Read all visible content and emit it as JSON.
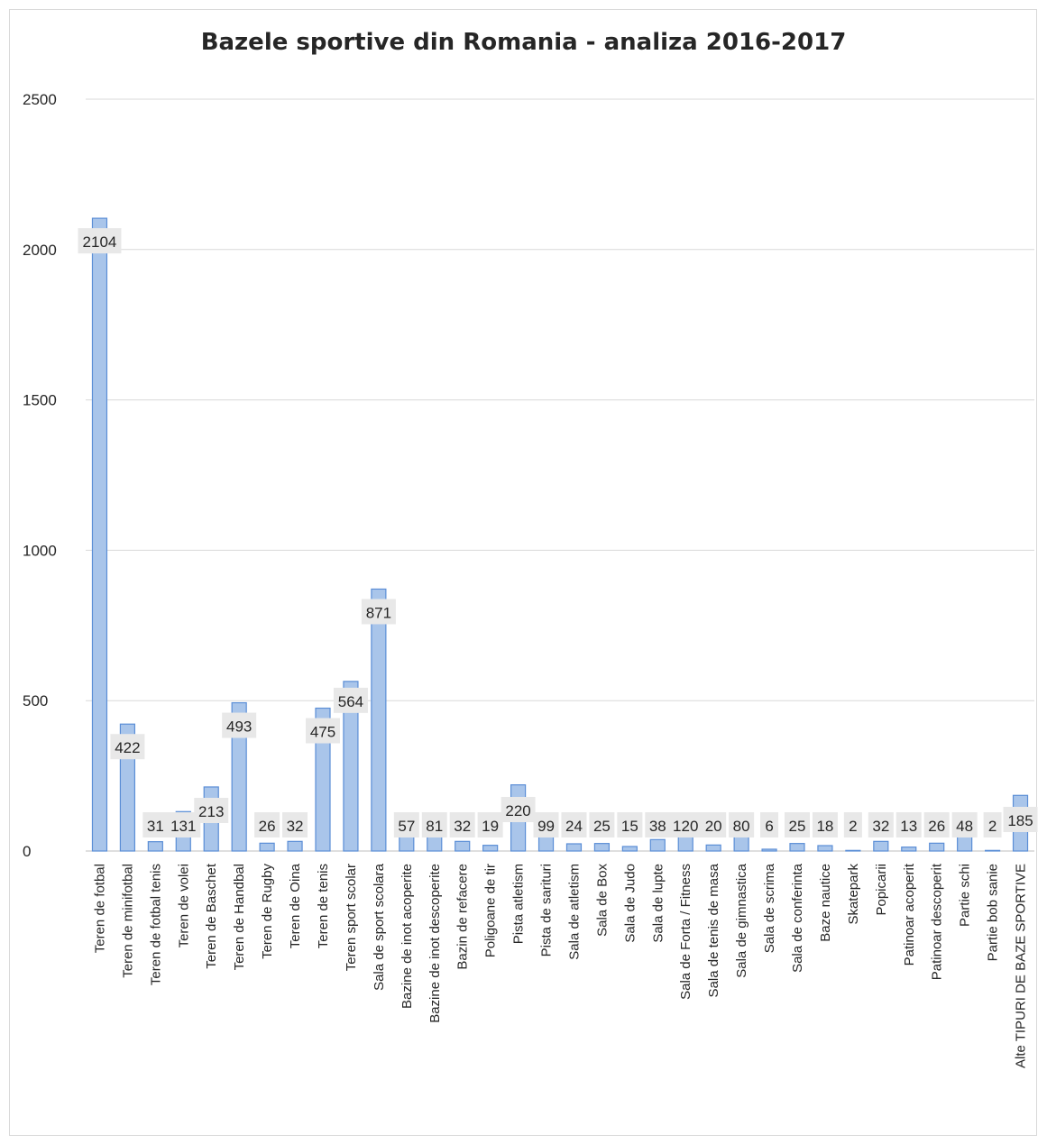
{
  "chart_data": {
    "type": "bar",
    "title": "Bazele sportive din Romania - analiza 2016-2017",
    "xlabel": "",
    "ylabel": "",
    "ylim": [
      0,
      2500
    ],
    "yticks": [
      0,
      500,
      1000,
      1500,
      2000,
      2500
    ],
    "grid": true,
    "colors": {
      "bar_fill": "#a9c5ea",
      "bar_stroke": "#5b8ed6",
      "grid": "#d9d9d9",
      "label_bg": "#e8e8e8"
    },
    "categories": [
      "Teren de fotbal",
      "Teren de minifotbal",
      "Teren de fotbal tenis",
      "Teren de volei",
      "Teren de Baschet",
      "Teren de Handbal",
      "Teren de Rugby",
      "Teren de Oina",
      "Teren de tenis",
      "Teren sport scolar",
      "Sala de sport scolara",
      "Bazine de inot acoperite",
      "Bazine de inot descoperite",
      "Bazin de refacere",
      "Poligoane de tir",
      "Pista atletism",
      "Pista de sarituri",
      "Sala de atletism",
      "Sala de Box",
      "Sala de Judo",
      "Sala de lupte",
      "Sala de Forta / Fitness",
      "Sala de tenis de masa",
      "Sala de gimnastica",
      "Sala de scrima",
      "Sala de conferinta",
      "Baze nautice",
      "Skatepark",
      "Popicarii",
      "Patinoar acoperit",
      "Patinoar descoperit",
      "Partie schi",
      "Partie bob sanie",
      "Alte TIPURI DE BAZE SPORTIVE"
    ],
    "values": [
      2104,
      422,
      31,
      131,
      213,
      493,
      26,
      32,
      475,
      564,
      871,
      57,
      81,
      32,
      19,
      220,
      99,
      24,
      25,
      15,
      38,
      120,
      20,
      80,
      6,
      25,
      18,
      2,
      32,
      13,
      26,
      48,
      2,
      185
    ],
    "data_labels": [
      "2104",
      "422",
      "31",
      "131",
      "213",
      "493",
      "26",
      "32",
      "475",
      "564",
      "871",
      "57",
      "81",
      "32",
      "19",
      "220",
      "99",
      "24",
      "25",
      "15",
      "38",
      "120",
      "20",
      "80",
      "6",
      "25",
      "18",
      "2",
      "32",
      "13",
      "26",
      "48",
      "2",
      "185"
    ]
  }
}
